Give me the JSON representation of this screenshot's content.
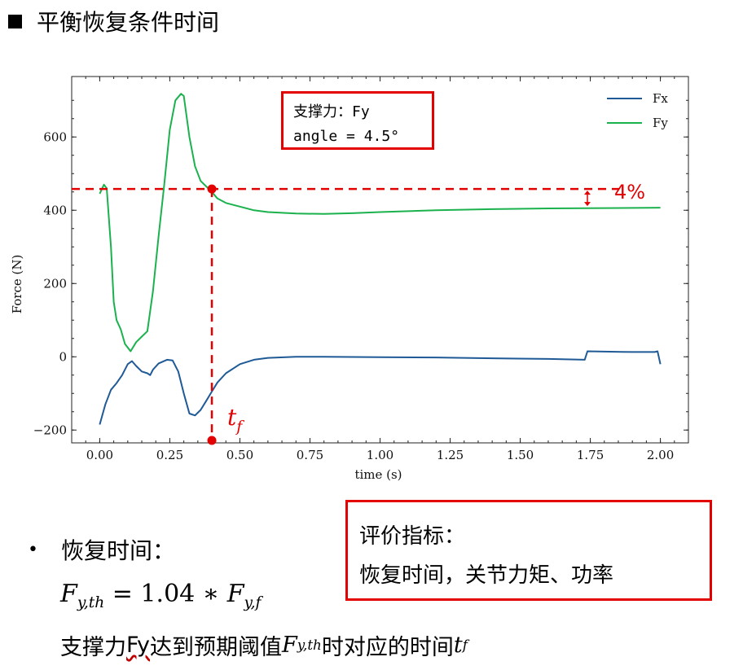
{
  "slide": {
    "title": "平衡恢复条件时间"
  },
  "chart_data": {
    "type": "line",
    "xlabel": "time (s)",
    "ylabel": "Force (N)",
    "xlim": [
      -0.1,
      2.1
    ],
    "ylim": [
      -235,
      765
    ],
    "x_ticks": [
      0.0,
      0.25,
      0.5,
      0.75,
      1.0,
      1.25,
      1.5,
      1.75,
      2.0
    ],
    "x_tick_labels": [
      "0.00",
      "0.25",
      "0.50",
      "0.75",
      "1.00",
      "1.25",
      "1.50",
      "1.75",
      "2.00"
    ],
    "y_ticks": [
      -200,
      0,
      200,
      400,
      600
    ],
    "y_tick_labels": [
      "−200",
      "0",
      "200",
      "400",
      "600"
    ],
    "legend": {
      "placement": "top-right",
      "entries": [
        "Fx",
        "Fy"
      ]
    },
    "grid": false,
    "series": [
      {
        "name": "Fx",
        "color": "#1f5a96",
        "points": [
          [
            0.0,
            -185
          ],
          [
            0.02,
            -130
          ],
          [
            0.04,
            -90
          ],
          [
            0.06,
            -72
          ],
          [
            0.08,
            -50
          ],
          [
            0.1,
            -20
          ],
          [
            0.115,
            -12
          ],
          [
            0.13,
            -25
          ],
          [
            0.15,
            -40
          ],
          [
            0.17,
            -45
          ],
          [
            0.18,
            -50
          ],
          [
            0.19,
            -35
          ],
          [
            0.21,
            -18
          ],
          [
            0.24,
            -8
          ],
          [
            0.26,
            -10
          ],
          [
            0.28,
            -40
          ],
          [
            0.3,
            -100
          ],
          [
            0.32,
            -155
          ],
          [
            0.34,
            -160
          ],
          [
            0.36,
            -145
          ],
          [
            0.38,
            -120
          ],
          [
            0.4,
            -95
          ],
          [
            0.42,
            -70
          ],
          [
            0.45,
            -45
          ],
          [
            0.5,
            -20
          ],
          [
            0.55,
            -8
          ],
          [
            0.6,
            -3
          ],
          [
            0.7,
            0
          ],
          [
            0.8,
            0
          ],
          [
            1.0,
            -1
          ],
          [
            1.2,
            -2
          ],
          [
            1.4,
            -4
          ],
          [
            1.6,
            -6
          ],
          [
            1.73,
            -8
          ],
          [
            1.74,
            15
          ],
          [
            1.8,
            14
          ],
          [
            1.9,
            13
          ],
          [
            1.98,
            13
          ],
          [
            1.99,
            15
          ],
          [
            2.0,
            -20
          ]
        ]
      },
      {
        "name": "Fy",
        "color": "#1bb24e",
        "points": [
          [
            0.0,
            445
          ],
          [
            0.015,
            470
          ],
          [
            0.025,
            460
          ],
          [
            0.04,
            300
          ],
          [
            0.05,
            150
          ],
          [
            0.06,
            100
          ],
          [
            0.075,
            75
          ],
          [
            0.09,
            35
          ],
          [
            0.11,
            15
          ],
          [
            0.13,
            40
          ],
          [
            0.15,
            55
          ],
          [
            0.17,
            70
          ],
          [
            0.19,
            180
          ],
          [
            0.21,
            330
          ],
          [
            0.23,
            470
          ],
          [
            0.25,
            620
          ],
          [
            0.27,
            700
          ],
          [
            0.29,
            718
          ],
          [
            0.3,
            712
          ],
          [
            0.32,
            600
          ],
          [
            0.34,
            520
          ],
          [
            0.36,
            480
          ],
          [
            0.38,
            465
          ],
          [
            0.4,
            450
          ],
          [
            0.42,
            432
          ],
          [
            0.45,
            420
          ],
          [
            0.5,
            410
          ],
          [
            0.55,
            400
          ],
          [
            0.6,
            395
          ],
          [
            0.7,
            391
          ],
          [
            0.8,
            390
          ],
          [
            0.9,
            392
          ],
          [
            1.0,
            395
          ],
          [
            1.2,
            400
          ],
          [
            1.4,
            403
          ],
          [
            1.6,
            405
          ],
          [
            1.8,
            406
          ],
          [
            2.0,
            407
          ]
        ]
      }
    ],
    "annotations": {
      "threshold_y": 458,
      "tf_x": 0.4,
      "tf_label": "t_f",
      "percent_label": "4%",
      "line_color": "#e30000"
    }
  },
  "note_box": {
    "line1": "支撑力：Fy",
    "line2": "angle = 4.5°"
  },
  "eval_box": {
    "line1": "评价指标：",
    "line2": "恢复时间，关节力矩、功率"
  },
  "bullet": {
    "symbol": "•",
    "text": "恢复时间："
  },
  "formula": {
    "lhs": "F",
    "lhs_sub": "y,th",
    "mid": " = 1.04 ∗ ",
    "rhs": "F",
    "rhs_sub": "y,f"
  },
  "description": {
    "part1": "支撑力",
    "fy": "Fy",
    "part2": "达到预期阈值",
    "var": "F",
    "var_sub": "y,th",
    "part3": "时对应的时间",
    "t": "t",
    "t_sub": "f"
  }
}
